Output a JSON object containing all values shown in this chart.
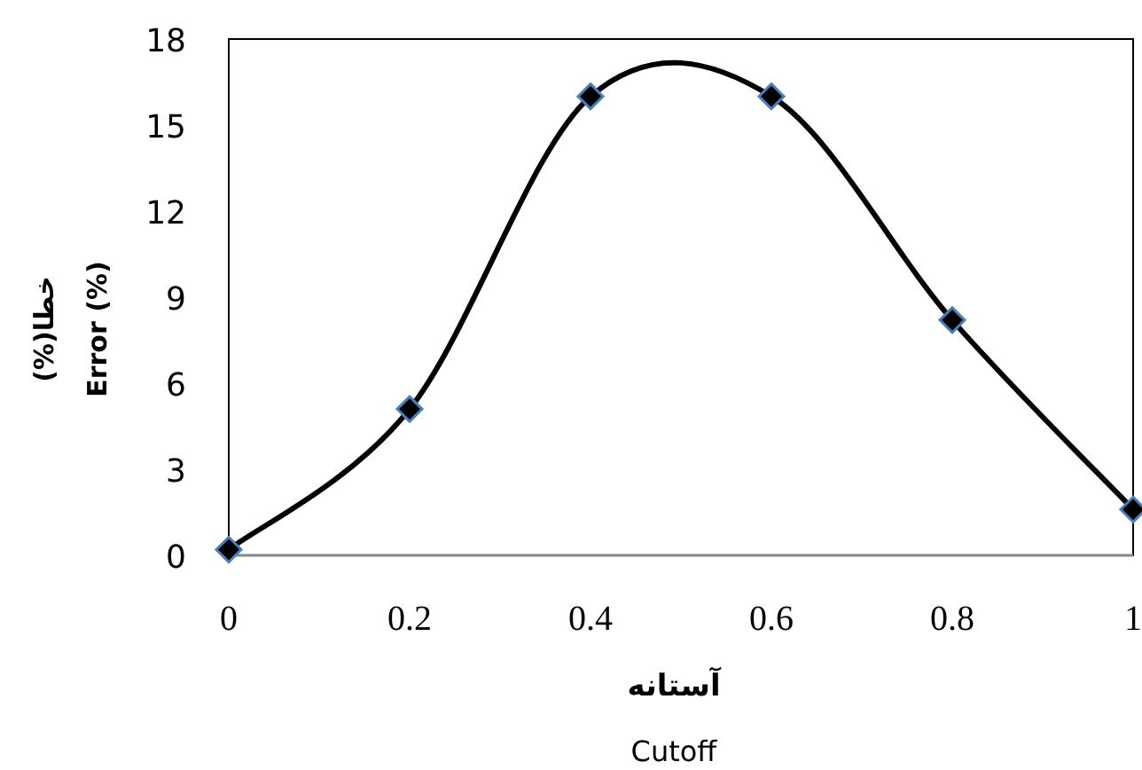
{
  "chart_data": {
    "type": "line",
    "xlabel": "آستانه\nCutoff",
    "ylabel": "خطا(%)\nError (%)",
    "x": [
      0,
      0.2,
      0.4,
      0.6,
      0.8,
      1
    ],
    "series": [
      {
        "color": "#000000",
        "values": [
          0.2,
          5.1,
          16,
          16,
          8.2,
          1.6
        ]
      }
    ],
    "marker": "diamond",
    "xlim": [
      0,
      1
    ],
    "xticks": [
      0,
      0.2,
      0.4,
      0.6,
      0.8,
      1
    ],
    "ylim": [
      0,
      18
    ],
    "yticks": [
      0,
      3,
      6,
      9,
      12,
      15,
      18
    ],
    "grid": false
  }
}
